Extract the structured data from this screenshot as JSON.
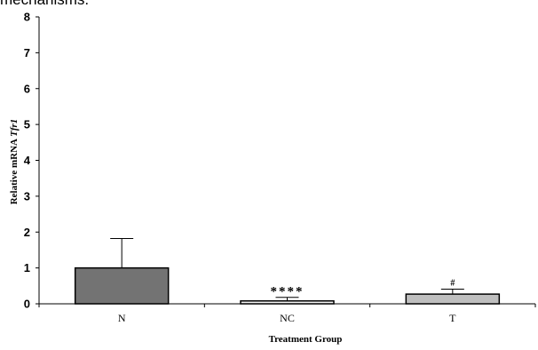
{
  "page": {
    "top_text": "mechanisms."
  },
  "chart_data": {
    "type": "bar",
    "categories": [
      "N",
      "NC",
      "T"
    ],
    "values": [
      1.0,
      0.08,
      0.27
    ],
    "errors": [
      0.82,
      0.1,
      0.14
    ],
    "annotations": [
      "",
      "****",
      "#"
    ],
    "colors": [
      "#737373",
      "#f2f2f2",
      "#bfbfbf"
    ],
    "xlabel": "Treatment Group",
    "ylabel_prefix": "Relative mRNA ",
    "ylabel_gene": "Tfr1",
    "ylim": [
      0,
      8
    ],
    "yticks": [
      0,
      1,
      2,
      3,
      4,
      5,
      6,
      7,
      8
    ],
    "grid": false
  }
}
